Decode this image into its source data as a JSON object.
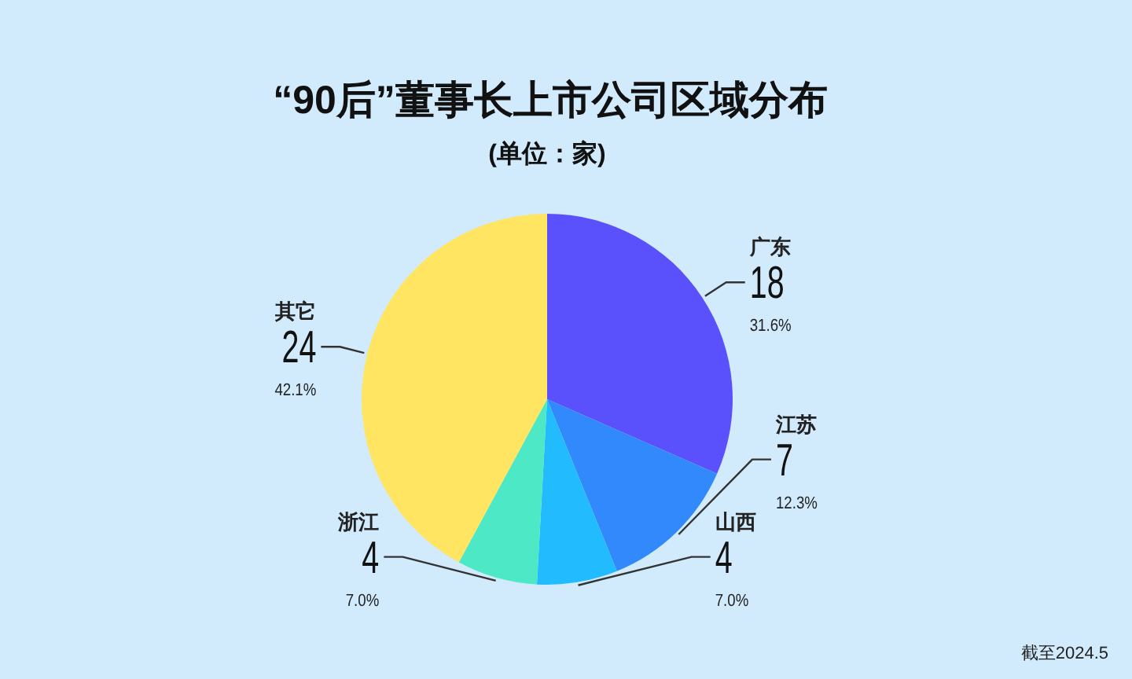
{
  "chart_data": {
    "type": "pie",
    "title": "“90后”董事长上市公司区域分布",
    "subtitle": "(单位：家)",
    "categories": [
      "广东",
      "江苏",
      "山西",
      "浙江",
      "其它"
    ],
    "values": [
      18,
      7,
      4,
      4,
      24
    ],
    "colors": [
      "#5a50fc",
      "#3189fb",
      "#22bcfe",
      "#4de8c6",
      "#ffe562"
    ],
    "value_labels": [
      "18\n31.6%",
      "7\n12.3%",
      "4\n7.0%",
      "4\n7.0%",
      "24\n42.1%"
    ],
    "annotations": [
      "截至2024.5"
    ]
  }
}
